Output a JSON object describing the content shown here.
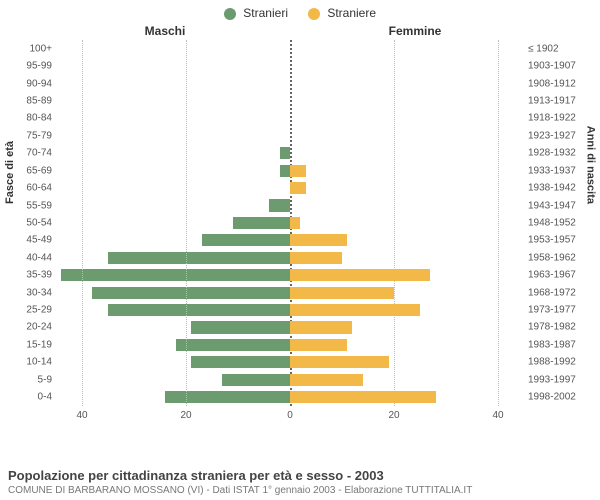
{
  "legend": {
    "male_label": "Stranieri",
    "female_label": "Straniere",
    "male_color": "#6b9b6f",
    "female_color": "#f2b949"
  },
  "headers": {
    "left": "Maschi",
    "right": "Femmine"
  },
  "axis_labels": {
    "left": "Fasce di età",
    "right": "Anni di nascita"
  },
  "x_axis": {
    "max": 45,
    "ticks_left": [
      40,
      20,
      0
    ],
    "ticks_right": [
      0,
      20,
      40
    ],
    "grid_color": "#bbbbbb",
    "center_color": "#666666"
  },
  "rows": [
    {
      "age": "100+",
      "years": "≤ 1902",
      "m": 0,
      "f": 0
    },
    {
      "age": "95-99",
      "years": "1903-1907",
      "m": 0,
      "f": 0
    },
    {
      "age": "90-94",
      "years": "1908-1912",
      "m": 0,
      "f": 0
    },
    {
      "age": "85-89",
      "years": "1913-1917",
      "m": 0,
      "f": 0
    },
    {
      "age": "80-84",
      "years": "1918-1922",
      "m": 0,
      "f": 0
    },
    {
      "age": "75-79",
      "years": "1923-1927",
      "m": 0,
      "f": 0
    },
    {
      "age": "70-74",
      "years": "1928-1932",
      "m": 2,
      "f": 0
    },
    {
      "age": "65-69",
      "years": "1933-1937",
      "m": 2,
      "f": 3
    },
    {
      "age": "60-64",
      "years": "1938-1942",
      "m": 0,
      "f": 3
    },
    {
      "age": "55-59",
      "years": "1943-1947",
      "m": 4,
      "f": 0
    },
    {
      "age": "50-54",
      "years": "1948-1952",
      "m": 11,
      "f": 2
    },
    {
      "age": "45-49",
      "years": "1953-1957",
      "m": 17,
      "f": 11
    },
    {
      "age": "40-44",
      "years": "1958-1962",
      "m": 35,
      "f": 10
    },
    {
      "age": "35-39",
      "years": "1963-1967",
      "m": 44,
      "f": 27
    },
    {
      "age": "30-34",
      "years": "1968-1972",
      "m": 38,
      "f": 20
    },
    {
      "age": "25-29",
      "years": "1973-1977",
      "m": 35,
      "f": 25
    },
    {
      "age": "20-24",
      "years": "1978-1982",
      "m": 19,
      "f": 12
    },
    {
      "age": "15-19",
      "years": "1983-1987",
      "m": 22,
      "f": 11
    },
    {
      "age": "10-14",
      "years": "1988-1992",
      "m": 19,
      "f": 19
    },
    {
      "age": "5-9",
      "years": "1993-1997",
      "m": 13,
      "f": 14
    },
    {
      "age": "0-4",
      "years": "1998-2002",
      "m": 24,
      "f": 28
    }
  ],
  "footer": {
    "title": "Popolazione per cittadinanza straniera per età e sesso - 2003",
    "subtitle": "COMUNE DI BARBARANO MOSSANO (VI) - Dati ISTAT 1° gennaio 2003 - Elaborazione TUTTITALIA.IT"
  }
}
